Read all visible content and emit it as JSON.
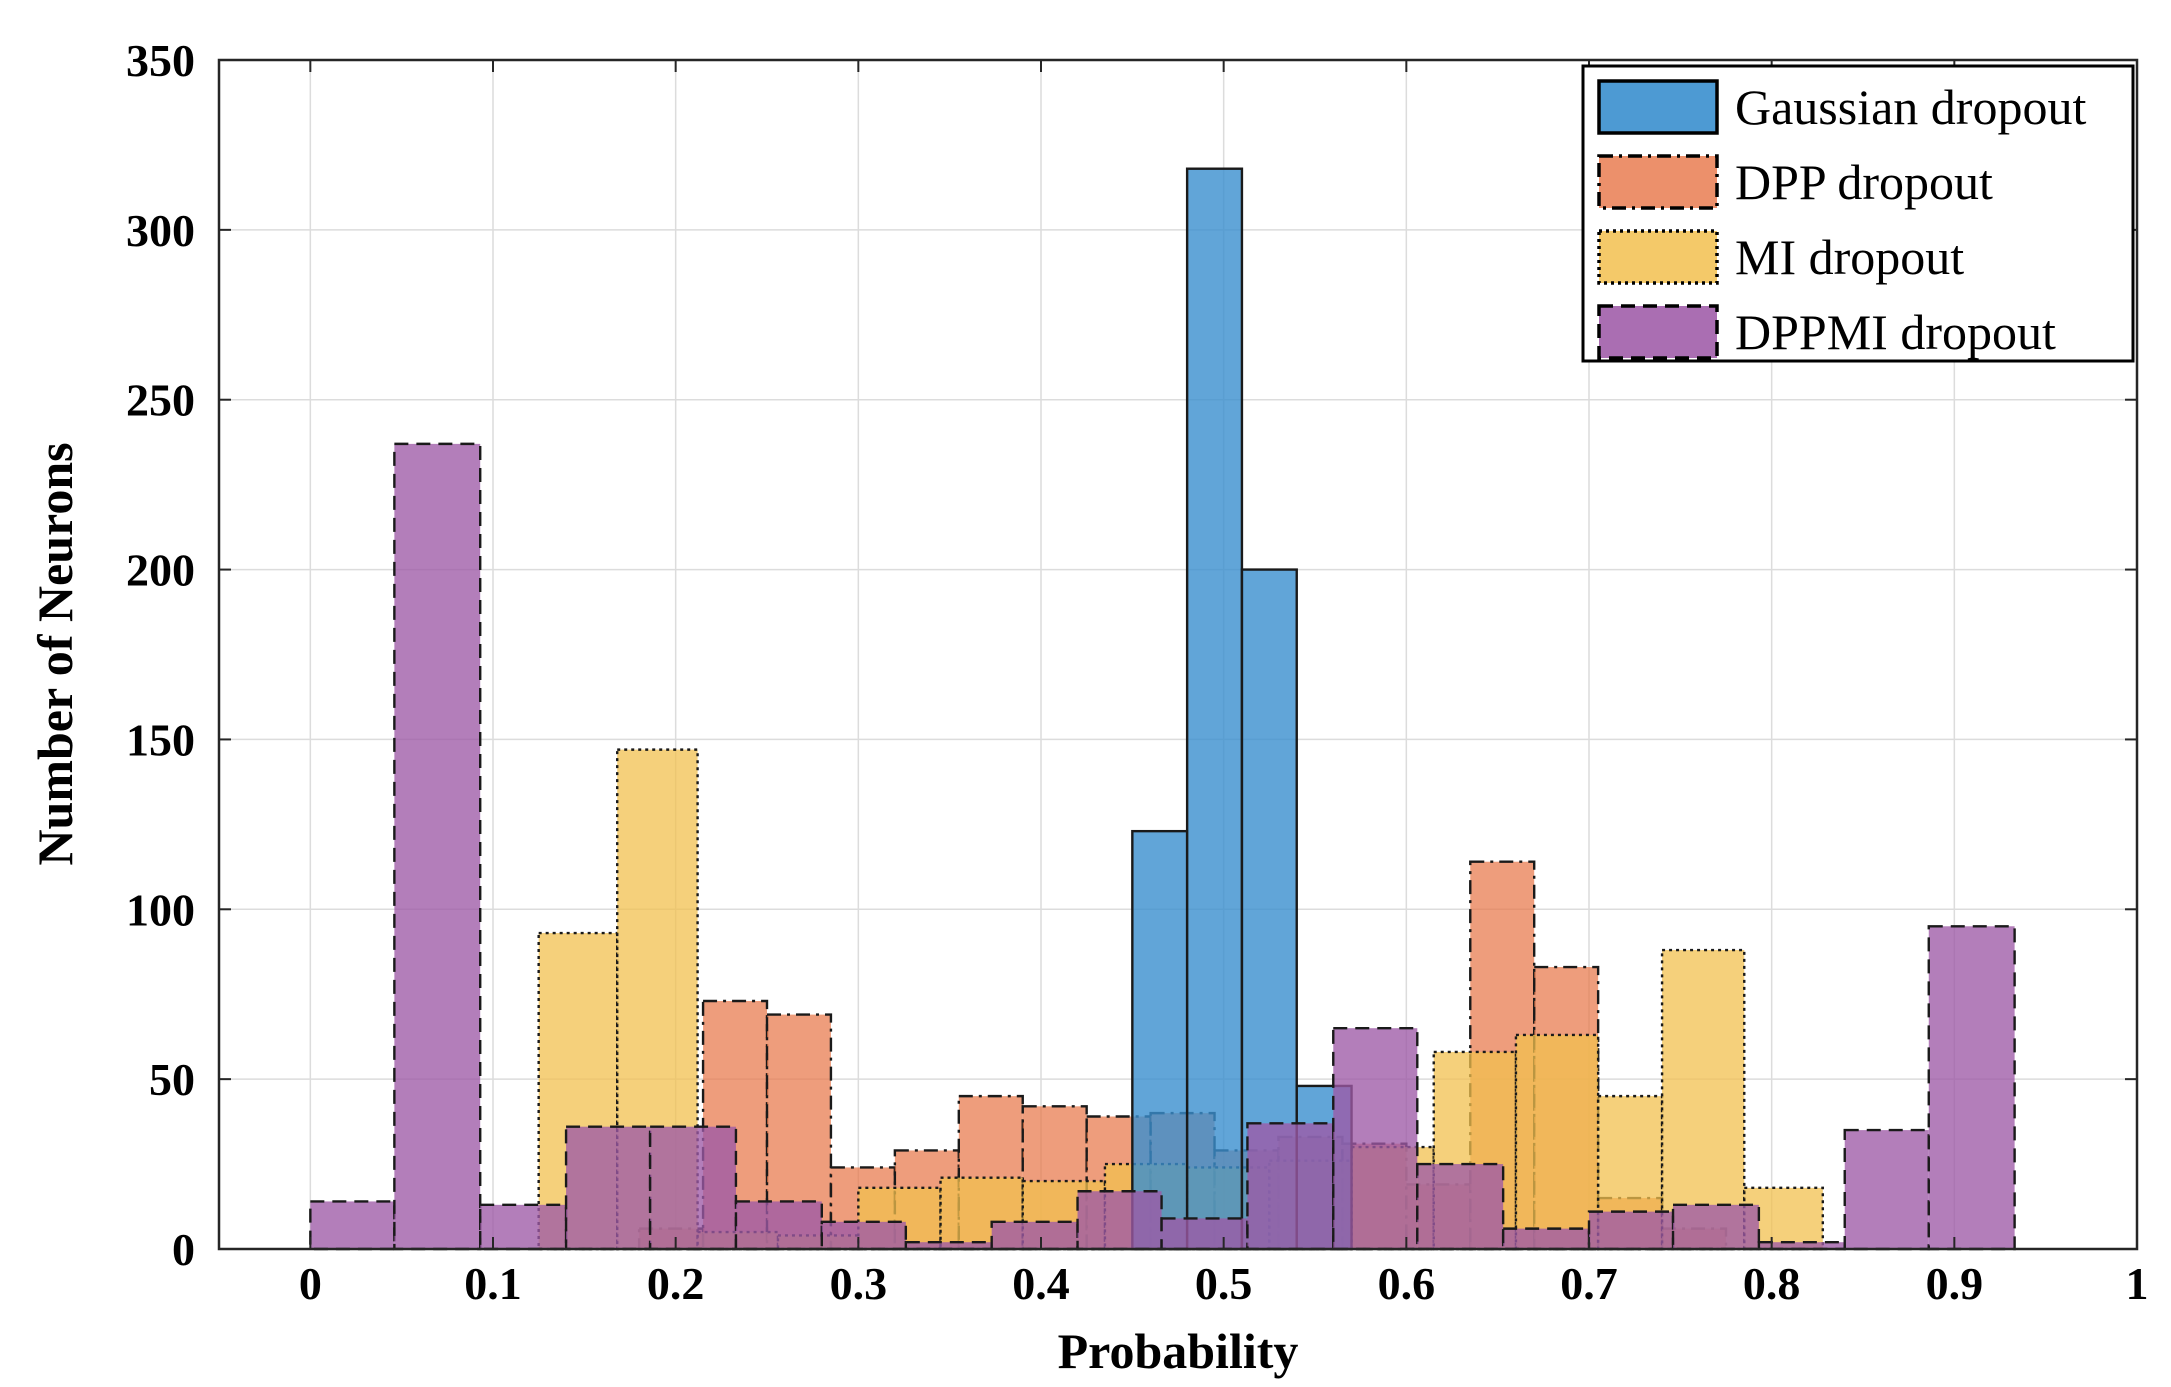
{
  "chart_data": {
    "type": "histogram",
    "title": "",
    "xlabel": "Probability",
    "ylabel": "Number of Neurons",
    "xlim": [
      -0.05,
      1.0
    ],
    "ylim": [
      0,
      350
    ],
    "xticks": [
      "0",
      "0.1",
      "0.2",
      "0.3",
      "0.4",
      "0.5",
      "0.6",
      "0.7",
      "0.8",
      "0.9",
      "1"
    ],
    "xtick_values": [
      0,
      0.1,
      0.2,
      0.3,
      0.4,
      0.5,
      0.6,
      0.7,
      0.8,
      0.9,
      1.0
    ],
    "yticks": [
      "0",
      "50",
      "100",
      "150",
      "200",
      "250",
      "300",
      "350"
    ],
    "ytick_values": [
      0,
      50,
      100,
      150,
      200,
      250,
      300,
      350
    ],
    "grid": true,
    "legend_position": "top-right",
    "series": [
      {
        "name": "Gaussian dropout",
        "color": "#3a8fce",
        "opacity": 0.8,
        "edge": "solid",
        "bins": [
          {
            "x0": 0.45,
            "x1": 0.48,
            "count": 123
          },
          {
            "x0": 0.48,
            "x1": 0.51,
            "count": 318
          },
          {
            "x0": 0.51,
            "x1": 0.54,
            "count": 200
          },
          {
            "x0": 0.54,
            "x1": 0.57,
            "count": 48
          }
        ]
      },
      {
        "name": "DPP dropout",
        "color": "#e8774a",
        "opacity": 0.72,
        "edge": "dashdot",
        "bins": [
          {
            "x0": 0.18,
            "x1": 0.215,
            "count": 6
          },
          {
            "x0": 0.215,
            "x1": 0.25,
            "count": 73
          },
          {
            "x0": 0.25,
            "x1": 0.285,
            "count": 69
          },
          {
            "x0": 0.285,
            "x1": 0.32,
            "count": 24
          },
          {
            "x0": 0.32,
            "x1": 0.355,
            "count": 29
          },
          {
            "x0": 0.355,
            "x1": 0.39,
            "count": 45
          },
          {
            "x0": 0.39,
            "x1": 0.425,
            "count": 42
          },
          {
            "x0": 0.425,
            "x1": 0.46,
            "count": 39
          },
          {
            "x0": 0.46,
            "x1": 0.495,
            "count": 40
          },
          {
            "x0": 0.495,
            "x1": 0.53,
            "count": 29
          },
          {
            "x0": 0.53,
            "x1": 0.565,
            "count": 33
          },
          {
            "x0": 0.565,
            "x1": 0.6,
            "count": 31
          },
          {
            "x0": 0.6,
            "x1": 0.635,
            "count": 19
          },
          {
            "x0": 0.635,
            "x1": 0.67,
            "count": 114
          },
          {
            "x0": 0.67,
            "x1": 0.705,
            "count": 83
          },
          {
            "x0": 0.705,
            "x1": 0.74,
            "count": 15
          },
          {
            "x0": 0.74,
            "x1": 0.775,
            "count": 6
          }
        ]
      },
      {
        "name": "MI dropout",
        "color": "#f2c04f",
        "opacity": 0.75,
        "edge": "dotted",
        "bins": [
          {
            "x0": 0.125,
            "x1": 0.168,
            "count": 93
          },
          {
            "x0": 0.168,
            "x1": 0.212,
            "count": 147
          },
          {
            "x0": 0.212,
            "x1": 0.256,
            "count": 5
          },
          {
            "x0": 0.256,
            "x1": 0.3,
            "count": 4
          },
          {
            "x0": 0.3,
            "x1": 0.345,
            "count": 18
          },
          {
            "x0": 0.345,
            "x1": 0.39,
            "count": 21
          },
          {
            "x0": 0.39,
            "x1": 0.435,
            "count": 20
          },
          {
            "x0": 0.435,
            "x1": 0.48,
            "count": 25
          },
          {
            "x0": 0.48,
            "x1": 0.525,
            "count": 24
          },
          {
            "x0": 0.525,
            "x1": 0.57,
            "count": 26
          },
          {
            "x0": 0.57,
            "x1": 0.615,
            "count": 30
          },
          {
            "x0": 0.615,
            "x1": 0.66,
            "count": 58
          },
          {
            "x0": 0.66,
            "x1": 0.705,
            "count": 63
          },
          {
            "x0": 0.705,
            "x1": 0.74,
            "count": 45
          },
          {
            "x0": 0.74,
            "x1": 0.785,
            "count": 88
          },
          {
            "x0": 0.785,
            "x1": 0.828,
            "count": 18
          }
        ]
      },
      {
        "name": "DPPMI dropout",
        "color": "#9e5aa7",
        "opacity": 0.78,
        "edge": "dashed",
        "bins": [
          {
            "x0": 0.0,
            "x1": 0.046,
            "count": 14
          },
          {
            "x0": 0.046,
            "x1": 0.093,
            "count": 237
          },
          {
            "x0": 0.093,
            "x1": 0.14,
            "count": 13
          },
          {
            "x0": 0.14,
            "x1": 0.186,
            "count": 36
          },
          {
            "x0": 0.186,
            "x1": 0.233,
            "count": 36
          },
          {
            "x0": 0.233,
            "x1": 0.28,
            "count": 14
          },
          {
            "x0": 0.28,
            "x1": 0.326,
            "count": 8
          },
          {
            "x0": 0.326,
            "x1": 0.373,
            "count": 2
          },
          {
            "x0": 0.373,
            "x1": 0.42,
            "count": 8
          },
          {
            "x0": 0.42,
            "x1": 0.466,
            "count": 17
          },
          {
            "x0": 0.466,
            "x1": 0.513,
            "count": 9
          },
          {
            "x0": 0.513,
            "x1": 0.56,
            "count": 37
          },
          {
            "x0": 0.56,
            "x1": 0.606,
            "count": 65
          },
          {
            "x0": 0.606,
            "x1": 0.653,
            "count": 25
          },
          {
            "x0": 0.653,
            "x1": 0.7,
            "count": 6
          },
          {
            "x0": 0.7,
            "x1": 0.746,
            "count": 11
          },
          {
            "x0": 0.746,
            "x1": 0.793,
            "count": 13
          },
          {
            "x0": 0.793,
            "x1": 0.84,
            "count": 2
          },
          {
            "x0": 0.84,
            "x1": 0.886,
            "count": 35
          },
          {
            "x0": 0.886,
            "x1": 0.933,
            "count": 95
          }
        ]
      }
    ]
  }
}
